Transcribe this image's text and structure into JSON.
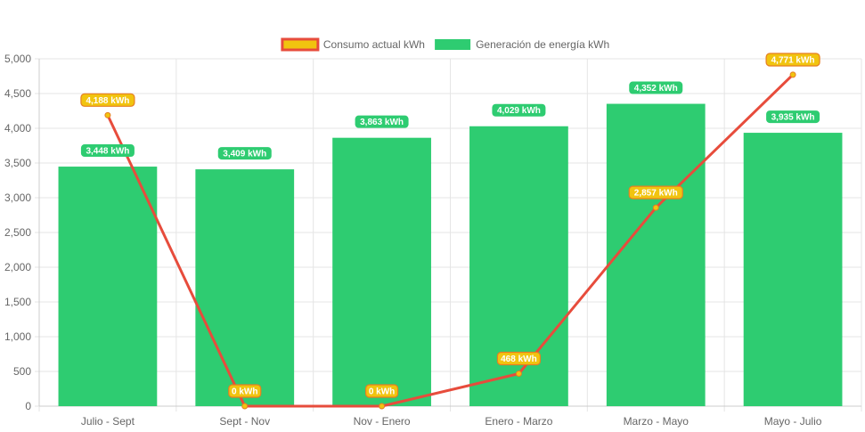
{
  "chart_data": {
    "type": "bar",
    "categories": [
      "Julio - Sept",
      "Sept - Nov",
      "Nov - Enero",
      "Enero - Marzo",
      "Marzo - Mayo",
      "Mayo - Julio"
    ],
    "series": [
      {
        "name": "Generación de energía kWh",
        "type": "bar",
        "color": "#2ecc71",
        "values": [
          3448,
          3409,
          3863,
          4029,
          4352,
          3935
        ],
        "labels": [
          "3,448 kWh",
          "3,409 kWh",
          "3,863 kWh",
          "4,029 kWh",
          "4,352 kWh",
          "3,935 kWh"
        ]
      },
      {
        "name": "Consumo actual kWh",
        "type": "line",
        "color": "#e74c3c",
        "point_color": "#f1c40f",
        "values": [
          4188,
          0,
          0,
          468,
          2857,
          4771
        ],
        "labels": [
          "4,188 kWh",
          "0 kWh",
          "0 kWh",
          "468 kWh",
          "2,857 kWh",
          "4,771 kWh"
        ]
      }
    ],
    "ylim": [
      0,
      5000
    ],
    "yticks": [
      "0",
      "500",
      "1,000",
      "1,500",
      "2,000",
      "2,500",
      "3,000",
      "3,500",
      "4,000",
      "4,500",
      "5,000"
    ],
    "grid": true,
    "legend_position": "top"
  }
}
